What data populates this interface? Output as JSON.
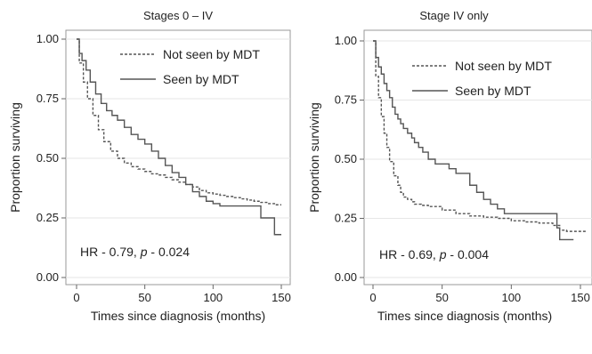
{
  "chart_data": [
    {
      "type": "line",
      "title": "Stages 0 – IV",
      "xlabel": "Times since diagnosis (months)",
      "ylabel": "Proportion surviving",
      "xlim": [
        0,
        155
      ],
      "ylim": [
        0,
        1.0
      ],
      "xticks": [
        "0",
        "50",
        "100",
        "150"
      ],
      "yticks": [
        "0.00",
        "0.25",
        "0.50",
        "0.75",
        "1.00"
      ],
      "grid": "horizontal",
      "legend": "top-right",
      "annotation": {
        "prefix": "HR - 0.79, ",
        "p_italic": "p",
        "suffix": " - 0.024"
      },
      "series": [
        {
          "name": "Not seen by MDT",
          "style": "dashed",
          "color": "#555555",
          "x": [
            0,
            2,
            5,
            8,
            12,
            16,
            20,
            25,
            30,
            35,
            40,
            45,
            50,
            55,
            60,
            65,
            70,
            75,
            80,
            85,
            90,
            95,
            100,
            105,
            110,
            115,
            120,
            125,
            130,
            135,
            140,
            145,
            150
          ],
          "y": [
            1.0,
            0.9,
            0.82,
            0.75,
            0.68,
            0.62,
            0.57,
            0.53,
            0.5,
            0.48,
            0.465,
            0.455,
            0.445,
            0.435,
            0.43,
            0.42,
            0.41,
            0.4,
            0.39,
            0.38,
            0.365,
            0.355,
            0.35,
            0.345,
            0.34,
            0.335,
            0.33,
            0.325,
            0.32,
            0.315,
            0.31,
            0.305,
            0.305
          ]
        },
        {
          "name": "Seen by MDT",
          "style": "solid",
          "color": "#555555",
          "x": [
            0,
            2,
            4,
            7,
            10,
            14,
            18,
            22,
            26,
            30,
            35,
            40,
            45,
            50,
            55,
            60,
            65,
            70,
            75,
            80,
            85,
            90,
            95,
            100,
            105,
            110,
            115,
            120,
            125,
            130,
            133,
            135,
            140,
            145,
            150
          ],
          "y": [
            1.0,
            0.94,
            0.91,
            0.87,
            0.82,
            0.77,
            0.73,
            0.7,
            0.68,
            0.66,
            0.63,
            0.6,
            0.58,
            0.56,
            0.53,
            0.5,
            0.47,
            0.44,
            0.42,
            0.39,
            0.36,
            0.34,
            0.32,
            0.31,
            0.3,
            0.3,
            0.3,
            0.3,
            0.3,
            0.3,
            0.3,
            0.25,
            0.25,
            0.18,
            0.18
          ]
        }
      ]
    },
    {
      "type": "line",
      "title": "Stage IV only",
      "xlabel": "Times since diagnosis (months)",
      "ylabel": "Proportion surviving",
      "xlim": [
        0,
        155
      ],
      "ylim": [
        0,
        1.0
      ],
      "xticks": [
        "0",
        "50",
        "100",
        "150"
      ],
      "yticks": [
        "0.00",
        "0.25",
        "0.50",
        "0.75",
        "1.00"
      ],
      "grid": "horizontal",
      "legend": "top-right",
      "annotation": {
        "prefix": "HR - 0.69, ",
        "p_italic": "p",
        "suffix": " - 0.004"
      },
      "series": [
        {
          "name": "Not seen by MDT",
          "style": "dashed",
          "color": "#555555",
          "x": [
            0,
            2,
            4,
            6,
            8,
            10,
            12,
            15,
            18,
            20,
            22,
            25,
            28,
            30,
            35,
            40,
            50,
            60,
            70,
            80,
            90,
            100,
            110,
            120,
            130,
            135,
            140,
            150,
            155
          ],
          "y": [
            1.0,
            0.85,
            0.76,
            0.68,
            0.61,
            0.55,
            0.49,
            0.43,
            0.39,
            0.36,
            0.34,
            0.33,
            0.32,
            0.31,
            0.305,
            0.3,
            0.285,
            0.27,
            0.26,
            0.255,
            0.25,
            0.24,
            0.235,
            0.23,
            0.22,
            0.2,
            0.195,
            0.195,
            0.195
          ]
        },
        {
          "name": "Seen by MDT",
          "style": "solid",
          "color": "#555555",
          "x": [
            0,
            2,
            4,
            6,
            8,
            10,
            12,
            14,
            16,
            18,
            20,
            22,
            25,
            28,
            30,
            33,
            36,
            40,
            45,
            50,
            55,
            60,
            65,
            70,
            75,
            80,
            85,
            90,
            95,
            100,
            110,
            120,
            125,
            130,
            133,
            135,
            140,
            145
          ],
          "y": [
            1.0,
            0.93,
            0.89,
            0.86,
            0.82,
            0.79,
            0.76,
            0.72,
            0.69,
            0.67,
            0.65,
            0.63,
            0.61,
            0.59,
            0.57,
            0.55,
            0.53,
            0.5,
            0.48,
            0.48,
            0.46,
            0.44,
            0.44,
            0.39,
            0.36,
            0.33,
            0.31,
            0.29,
            0.27,
            0.27,
            0.27,
            0.27,
            0.27,
            0.27,
            0.21,
            0.16,
            0.16,
            0.16
          ]
        }
      ]
    }
  ]
}
